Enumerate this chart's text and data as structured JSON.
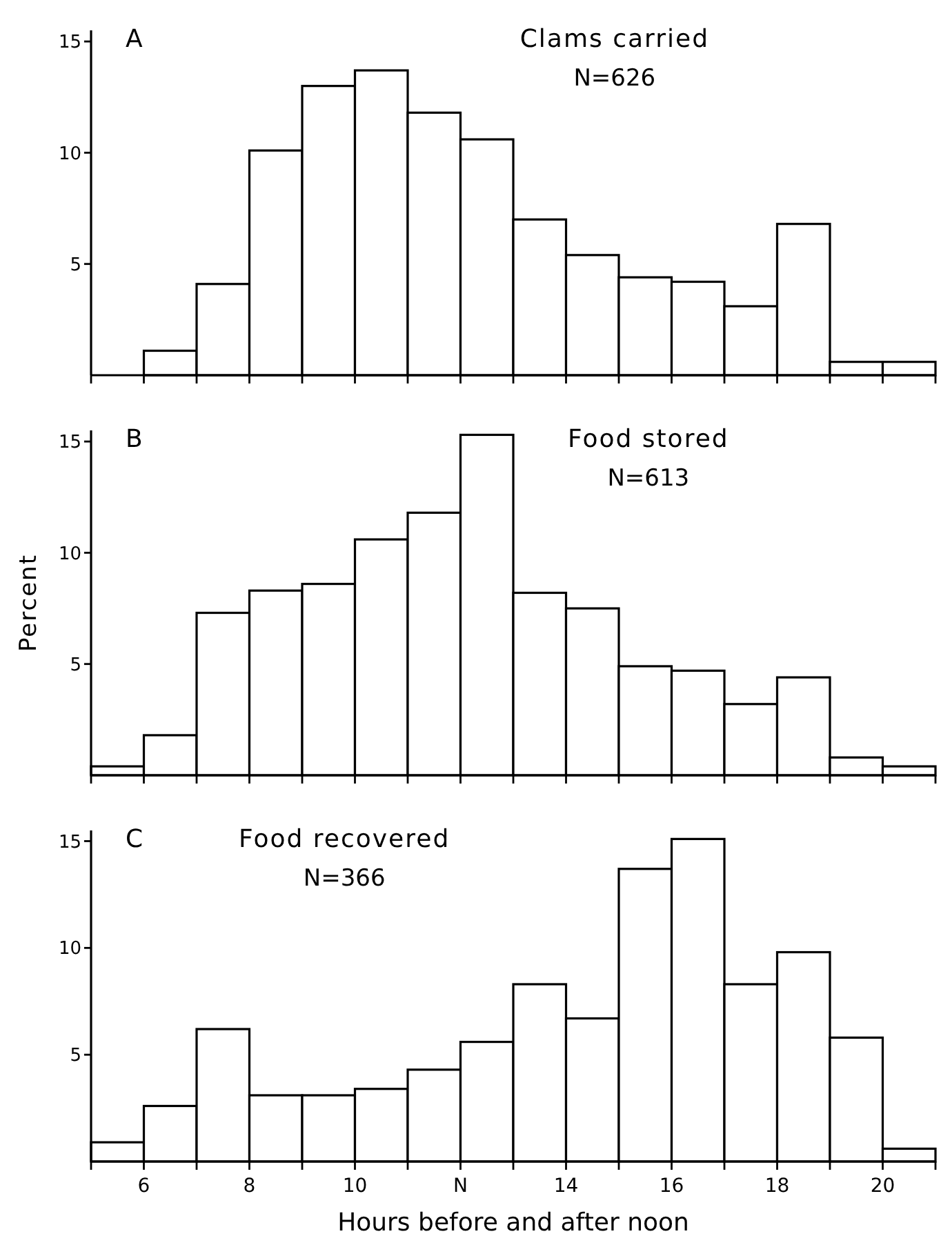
{
  "chart_data": [
    {
      "type": "histogram",
      "title": "Clams carried",
      "subtitle": "N=626",
      "annotations": [
        "A"
      ],
      "bins": [
        5,
        6,
        7,
        8,
        9,
        10,
        11,
        12,
        13,
        14,
        15,
        16,
        17,
        18,
        19,
        20,
        21
      ],
      "values": [
        0,
        1.1,
        4.1,
        10.1,
        13.0,
        13.7,
        11.8,
        10.6,
        7.0,
        5.4,
        4.4,
        4.2,
        3.1,
        6.8,
        0.6,
        0.6
      ],
      "color": "#ffffff",
      "xlim": [
        5,
        21
      ],
      "ylim": [
        0,
        15.5
      ],
      "yticks": [
        5,
        10,
        15
      ],
      "xticks": [
        {
          "value": 5,
          "label": null
        },
        {
          "value": 6,
          "label": null
        },
        {
          "value": 7,
          "label": null
        },
        {
          "value": 8,
          "label": null
        },
        {
          "value": 9,
          "label": null
        },
        {
          "value": 10,
          "label": null
        },
        {
          "value": 11,
          "label": null
        },
        {
          "value": 12,
          "label": null
        },
        {
          "value": 13,
          "label": null
        },
        {
          "value": 14,
          "label": null
        },
        {
          "value": 15,
          "label": null
        },
        {
          "value": 16,
          "label": null
        },
        {
          "value": 17,
          "label": null
        },
        {
          "value": 18,
          "label": null
        },
        {
          "value": 19,
          "label": null
        },
        {
          "value": 20,
          "label": null
        },
        {
          "value": 21,
          "label": null
        }
      ],
      "tick_labels": "y"
    },
    {
      "type": "histogram",
      "title": "Food stored",
      "subtitle": "N=613",
      "ylabel": "Percent",
      "annotations": [
        "B"
      ],
      "bins": [
        5,
        6,
        7,
        8,
        9,
        10,
        11,
        12,
        13,
        14,
        15,
        16,
        17,
        18,
        19,
        20,
        21
      ],
      "values": [
        0.4,
        1.8,
        7.3,
        8.3,
        8.6,
        10.6,
        11.8,
        15.3,
        8.2,
        7.5,
        4.9,
        4.7,
        3.2,
        4.4,
        0.8,
        0.4
      ],
      "color": "#ffffff",
      "xlim": [
        5,
        21
      ],
      "ylim": [
        0,
        15.5
      ],
      "yticks": [
        5,
        10,
        15
      ],
      "xticks": [
        {
          "value": 5,
          "label": null
        },
        {
          "value": 6,
          "label": null
        },
        {
          "value": 7,
          "label": null
        },
        {
          "value": 8,
          "label": null
        },
        {
          "value": 9,
          "label": null
        },
        {
          "value": 10,
          "label": null
        },
        {
          "value": 11,
          "label": null
        },
        {
          "value": 12,
          "label": null
        },
        {
          "value": 13,
          "label": null
        },
        {
          "value": 14,
          "label": null
        },
        {
          "value": 15,
          "label": null
        },
        {
          "value": 16,
          "label": null
        },
        {
          "value": 17,
          "label": null
        },
        {
          "value": 18,
          "label": null
        },
        {
          "value": 19,
          "label": null
        },
        {
          "value": 20,
          "label": null
        },
        {
          "value": 21,
          "label": null
        }
      ],
      "tick_labels": "y"
    },
    {
      "type": "histogram",
      "title": "Food recovered",
      "subtitle": "N=366",
      "xlabel": "Hours before and after noon",
      "annotations": [
        "C"
      ],
      "bins": [
        5,
        6,
        7,
        8,
        9,
        10,
        11,
        12,
        13,
        14,
        15,
        16,
        17,
        18,
        19,
        20,
        21
      ],
      "values": [
        0.9,
        2.6,
        6.2,
        3.1,
        3.1,
        3.4,
        4.3,
        5.6,
        8.3,
        6.7,
        13.7,
        15.1,
        8.3,
        9.8,
        5.8,
        0.6
      ],
      "color": "#ffffff",
      "xlim": [
        5,
        21
      ],
      "ylim": [
        0,
        15.5
      ],
      "yticks": [
        5,
        10,
        15
      ],
      "xticks": [
        {
          "value": 5,
          "label": null
        },
        6,
        {
          "value": 7,
          "label": null
        },
        8,
        {
          "value": 9,
          "label": null
        },
        10,
        {
          "value": 11,
          "label": null
        },
        {
          "value": 12,
          "label": "N"
        },
        {
          "value": 13,
          "label": null
        },
        14,
        {
          "value": 15,
          "label": null
        },
        16,
        {
          "value": 17,
          "label": null
        },
        18,
        {
          "value": 19,
          "label": null
        },
        20,
        {
          "value": 21,
          "label": null
        }
      ]
    }
  ]
}
